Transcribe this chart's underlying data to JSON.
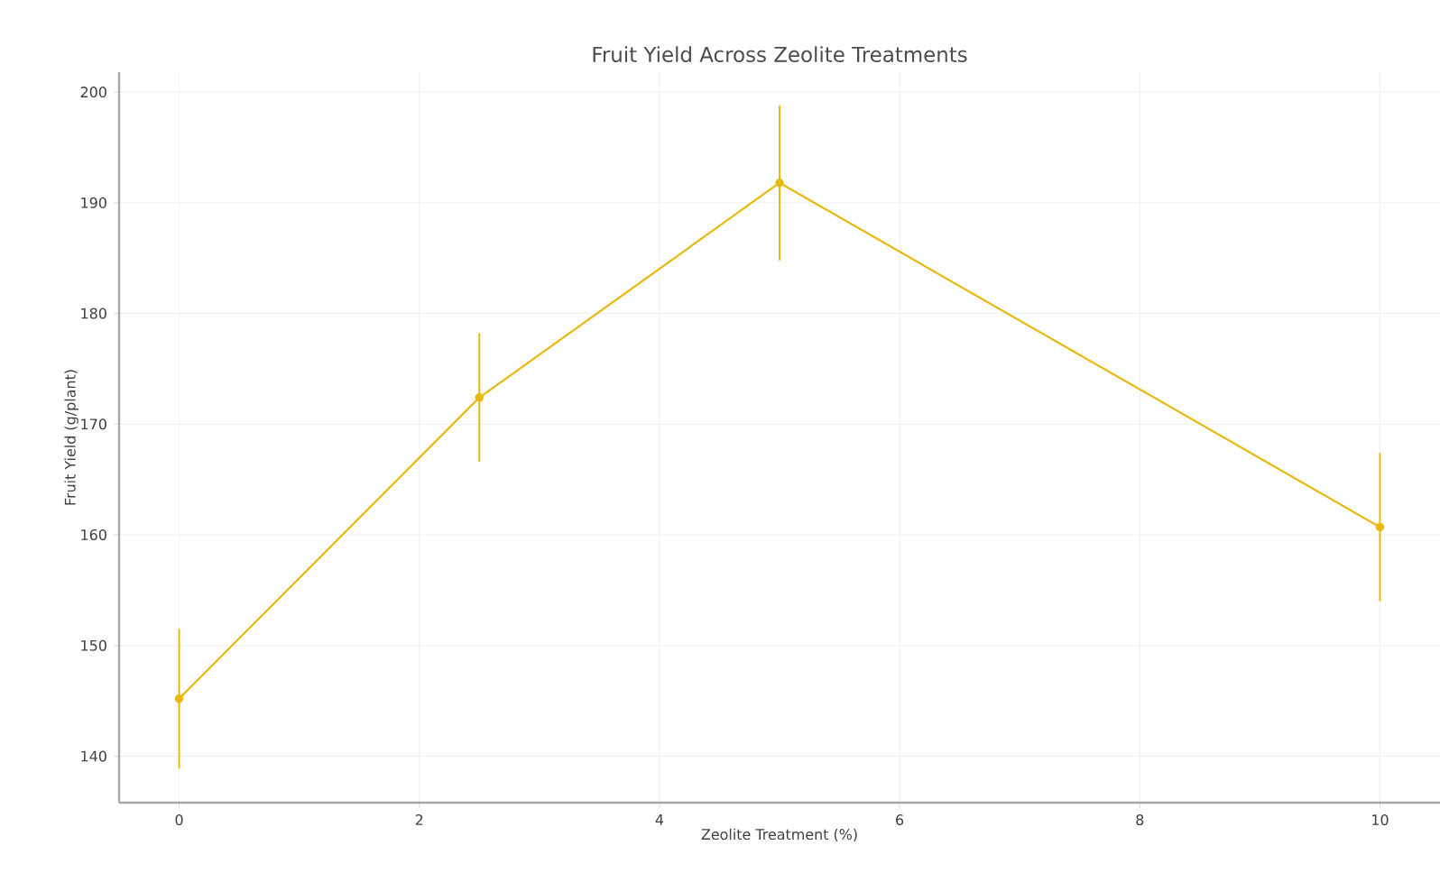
{
  "chart_data": {
    "type": "line",
    "title": "Fruit Yield Across Zeolite Treatments",
    "xlabel": "Zeolite Treatment (%)",
    "ylabel": "Fruit Yield (g/plant)",
    "x": [
      0,
      2.5,
      5,
      10
    ],
    "series": [
      {
        "color": "#e8b90c",
        "values": [
          145.2,
          172.4,
          191.8,
          160.7
        ],
        "errors": [
          6.3,
          5.8,
          7,
          6.7
        ]
      }
    ],
    "xlim": [
      -0.5,
      10.5
    ],
    "ylim": [
      135.8,
      201.8
    ],
    "xticks": [
      0,
      2,
      4,
      6,
      8,
      10
    ],
    "yticks": [
      140,
      150,
      160,
      170,
      180,
      190,
      200
    ],
    "grid": true,
    "marker": "circle",
    "line_style": "solid"
  }
}
